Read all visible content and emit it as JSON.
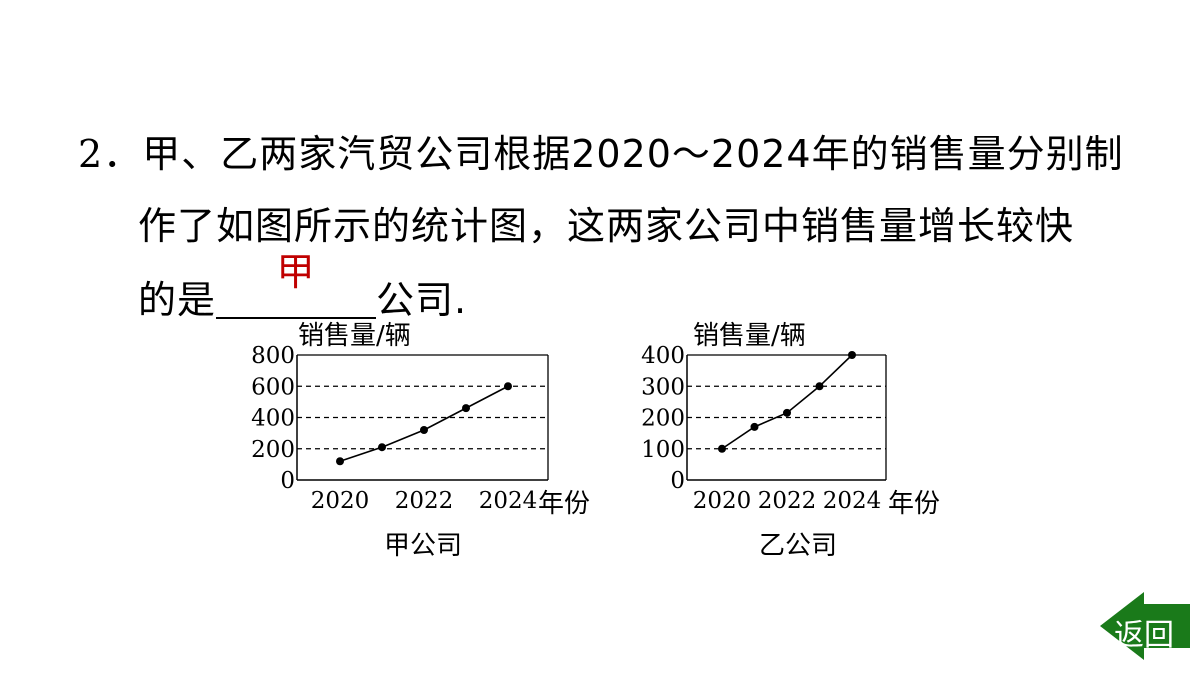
{
  "question": {
    "number": "2．",
    "line1": "甲、乙两家汽贸公司根据2020～2024年的销售量分别制",
    "line2": "作了如图所示的统计图，这两家公司中销售量增长较快",
    "line3_before": "的是",
    "answer": "甲",
    "line3_after": "公司."
  },
  "chart_data": [
    {
      "type": "line",
      "caption": "甲公司",
      "ylabel": "销售量/辆",
      "xlabel": "年份",
      "x": [
        2020,
        2021,
        2022,
        2023,
        2024
      ],
      "values": [
        120,
        210,
        320,
        460,
        600
      ],
      "ylim": [
        0,
        800
      ],
      "yticks": [
        "0",
        "200",
        "400",
        "600",
        "800"
      ],
      "xticks": [
        "2020",
        "2022",
        "2024"
      ],
      "grid": "dashed horizontal"
    },
    {
      "type": "line",
      "caption": "乙公司",
      "ylabel": "销售量/辆",
      "xlabel": "年份",
      "x": [
        2020,
        2021,
        2022,
        2023,
        2024
      ],
      "values": [
        100,
        170,
        215,
        300,
        400
      ],
      "ylim": [
        0,
        400
      ],
      "yticks": [
        "0",
        "100",
        "200",
        "300",
        "400"
      ],
      "xticks": [
        "2020",
        "2022",
        "2024"
      ],
      "grid": "dashed horizontal"
    }
  ],
  "nav": {
    "back_label": "返回",
    "back_color": "#1a7a1a"
  }
}
